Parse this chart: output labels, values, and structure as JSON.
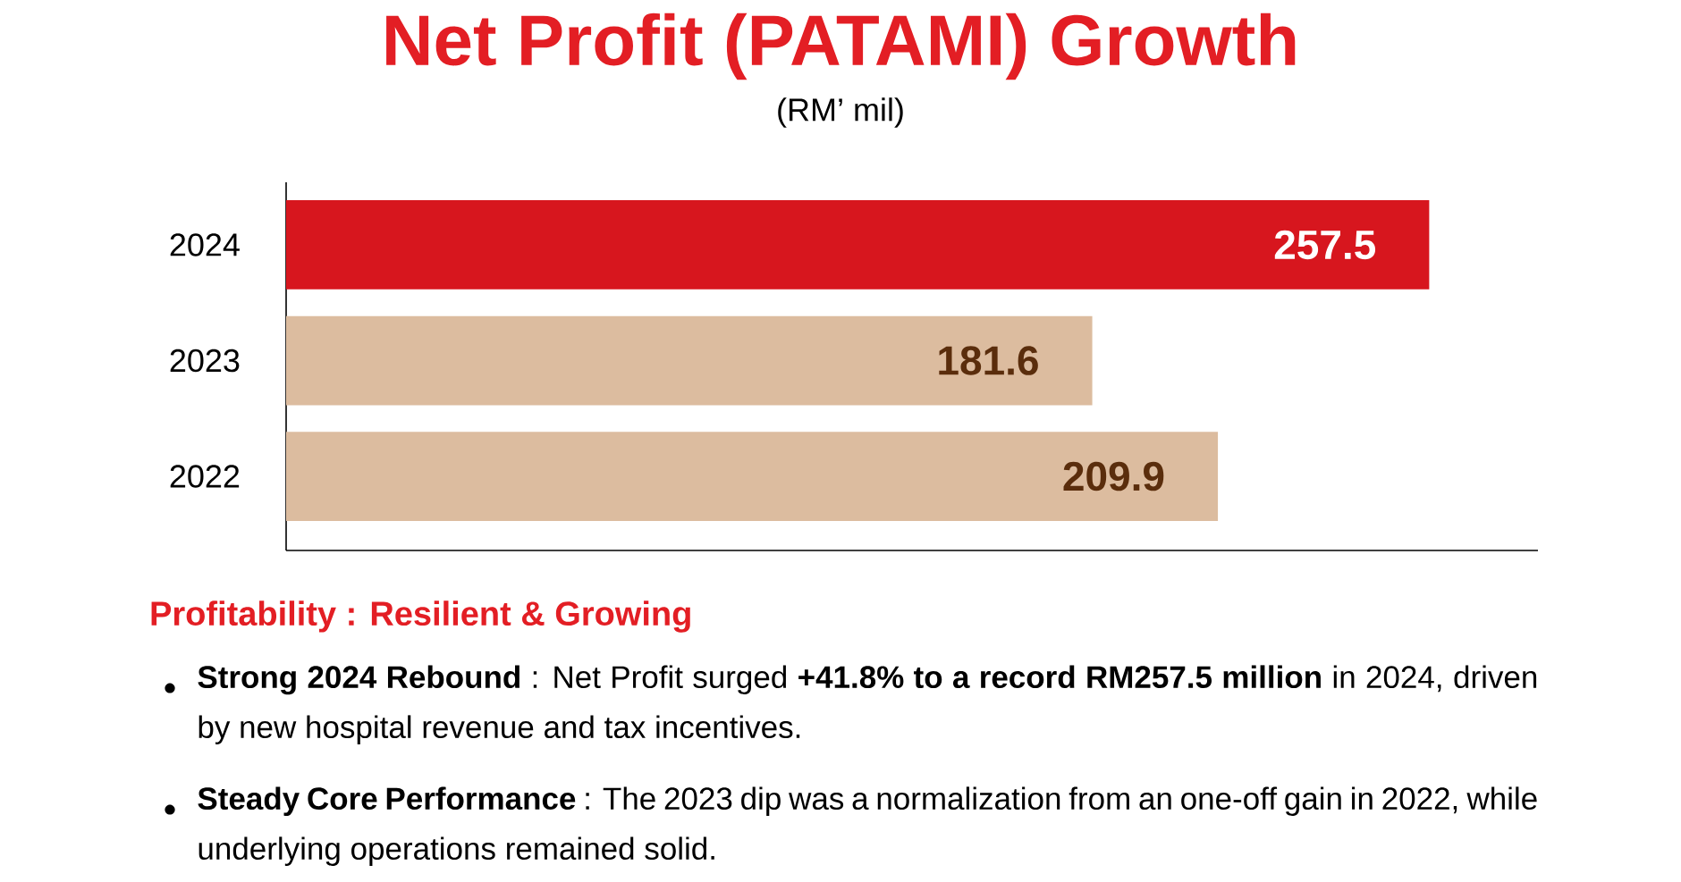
{
  "chart_data": {
    "type": "bar",
    "orientation": "horizontal",
    "title": "Net Profit (PATAMI) Growth",
    "subtitle": "(RM’ mil)",
    "categories": [
      "2024",
      "2023",
      "2022"
    ],
    "values": [
      257.5,
      181.6,
      209.9
    ],
    "colors": [
      "#d7161e",
      "#dcbc9f",
      "#dcbc9f"
    ],
    "xlim": [
      0,
      282
    ],
    "tick_labels": "y",
    "data_labels": true,
    "annotations": [
      "Profitability : Resilient & Growing",
      "**Strong 2024 Rebound** : Net Profit surged **+41.8% to a record RM257.5 million** in 2024, driven by new hospital revenue and tax incentives.",
      "**Steady Core Performance** : The 2023 dip was a normalization from an one-off gain in 2022, while underlying operations remained solid."
    ]
  }
}
